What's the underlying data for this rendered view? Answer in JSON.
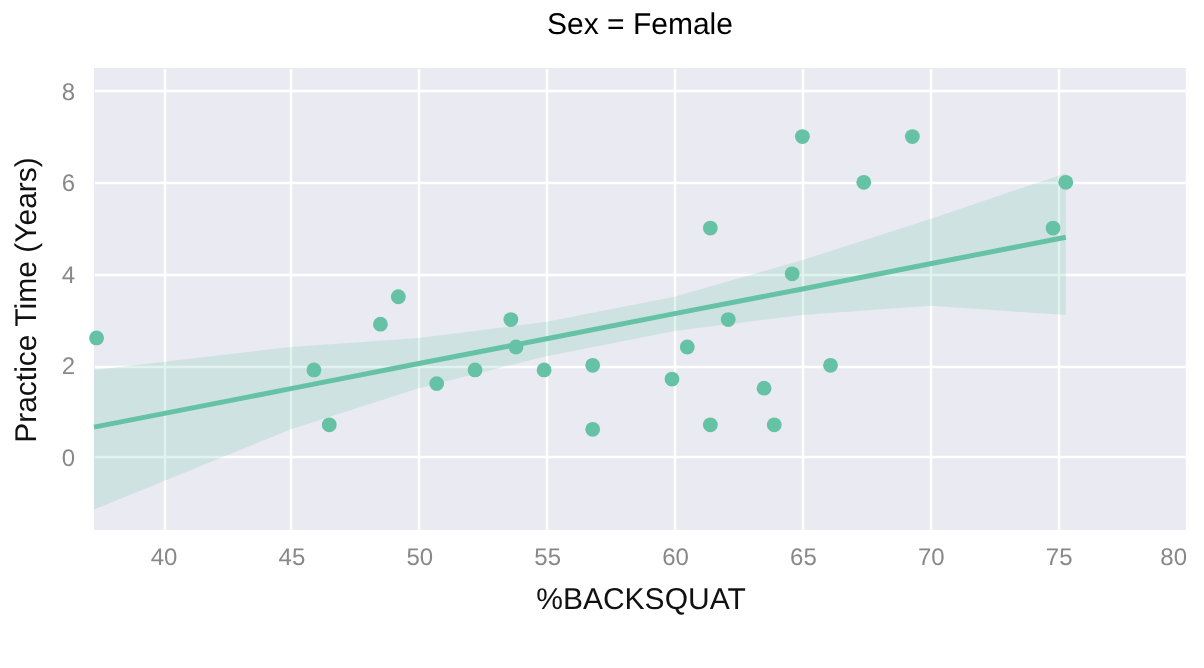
{
  "chart_data": {
    "type": "scatter",
    "title": "Sex = Female",
    "xlabel": "%BACKSQUAT",
    "ylabel": "Practice Time (Years)",
    "xlim": [
      37.3,
      80
    ],
    "xticks": [
      40,
      45,
      50,
      55,
      60,
      65,
      70,
      75,
      80
    ],
    "ylim": [
      -1.6,
      8.5
    ],
    "yticks": [
      0,
      2,
      4,
      6,
      8
    ],
    "grid": true,
    "series": [
      {
        "marker": "circle",
        "color": "#66c2a5",
        "x": [
          37.4,
          45.9,
          46.5,
          48.5,
          49.2,
          50.7,
          52.2,
          53.6,
          53.8,
          54.9,
          56.8,
          56.8,
          59.9,
          60.5,
          61.4,
          61.4,
          62.1,
          63.5,
          63.9,
          64.6,
          65.0,
          66.1,
          67.4,
          69.3,
          74.8,
          75.3
        ],
        "values": [
          2.6,
          1.9,
          0.7,
          2.9,
          3.5,
          1.6,
          1.9,
          3.0,
          2.4,
          1.9,
          2.0,
          0.6,
          1.7,
          2.4,
          5.0,
          0.7,
          3.0,
          1.5,
          0.7,
          4.0,
          7.0,
          2.0,
          6.0,
          7.0,
          5.0,
          6.0
        ]
      },
      {
        "type": "line",
        "color": "#66c2a5",
        "x": [
          37.3,
          45,
          50,
          55,
          60,
          65,
          70,
          75.3
        ],
        "values": [
          0.65,
          1.49,
          2.04,
          2.58,
          3.13,
          3.67,
          4.22,
          4.8
        ],
        "lower": [
          -1.15,
          0.6,
          1.5,
          2.2,
          2.75,
          3.1,
          3.3,
          3.1
        ],
        "upper": [
          1.9,
          2.4,
          2.6,
          2.95,
          3.5,
          4.3,
          5.2,
          6.2
        ]
      }
    ]
  }
}
